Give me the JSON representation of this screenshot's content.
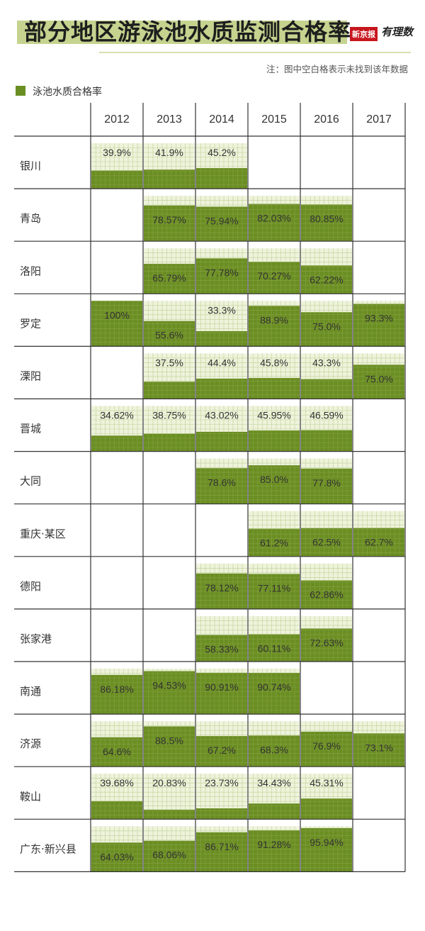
{
  "title": "部分地区游泳池水质监测合格率",
  "brand": {
    "tag": "新京报",
    "logo": "有理数"
  },
  "note": "注：图中空白格表示未找到该年数据",
  "legend": {
    "label": "泳池水质合格率"
  },
  "colors": {
    "fill": "#6b8e23",
    "empty": "#eef3db",
    "grid": "#9bb25e",
    "title_bar": "#c5d38f",
    "line": "#333333"
  },
  "chart_data": {
    "type": "table",
    "unit": "%",
    "years": [
      "2012",
      "2013",
      "2014",
      "2015",
      "2016",
      "2017"
    ],
    "rows": [
      {
        "region": "银川",
        "values": [
          39.9,
          41.9,
          45.2,
          null,
          null,
          null
        ],
        "labels": [
          "39.9%",
          "41.9%",
          "45.2%",
          "",
          "",
          ""
        ]
      },
      {
        "region": "青岛",
        "values": [
          null,
          78.57,
          75.94,
          82.03,
          80.85,
          null
        ],
        "labels": [
          "",
          "78.57%",
          "75.94%",
          "82.03%",
          "80.85%",
          ""
        ]
      },
      {
        "region": "洛阳",
        "values": [
          null,
          65.79,
          77.78,
          70.27,
          62.22,
          null
        ],
        "labels": [
          "",
          "65.79%",
          "77.78%",
          "70.27%",
          "62.22%",
          ""
        ]
      },
      {
        "region": "罗定",
        "values": [
          100,
          55.6,
          33.3,
          88.9,
          75.0,
          93.3
        ],
        "labels": [
          "100%",
          "55.6%",
          "33.3%",
          "88.9%",
          "75.0%",
          "93.3%"
        ]
      },
      {
        "region": "溧阳",
        "values": [
          null,
          37.5,
          44.4,
          45.8,
          43.3,
          75.0
        ],
        "labels": [
          "",
          "37.5%",
          "44.4%",
          "45.8%",
          "43.3%",
          "75.0%"
        ]
      },
      {
        "region": "晋城",
        "values": [
          34.62,
          38.75,
          43.02,
          45.95,
          46.59,
          null
        ],
        "labels": [
          "34.62%",
          "38.75%",
          "43.02%",
          "45.95%",
          "46.59%",
          ""
        ]
      },
      {
        "region": "大同",
        "values": [
          null,
          null,
          78.6,
          85.0,
          77.8,
          null
        ],
        "labels": [
          "",
          "",
          "78.6%",
          "85.0%",
          "77.8%",
          ""
        ]
      },
      {
        "region": "重庆·某区",
        "values": [
          null,
          null,
          null,
          61.2,
          62.5,
          62.7
        ],
        "labels": [
          "",
          "",
          "",
          "61.2%",
          "62.5%",
          "62.7%"
        ]
      },
      {
        "region": "德阳",
        "values": [
          null,
          null,
          78.12,
          77.11,
          62.86,
          null
        ],
        "labels": [
          "",
          "",
          "78.12%",
          "77.11%",
          "62.86%",
          ""
        ]
      },
      {
        "region": "张家港",
        "values": [
          null,
          null,
          58.33,
          60.11,
          72.63,
          null
        ],
        "labels": [
          "",
          "",
          "58.33%",
          "60.11%",
          "72.63%",
          ""
        ]
      },
      {
        "region": "南通",
        "values": [
          86.18,
          94.53,
          90.91,
          90.74,
          null,
          null
        ],
        "labels": [
          "86.18%",
          "94.53%",
          "90.91%",
          "90.74%",
          "",
          ""
        ]
      },
      {
        "region": "济源",
        "values": [
          64.6,
          88.5,
          67.2,
          68.3,
          76.9,
          73.1
        ],
        "labels": [
          "64.6%",
          "88.5%",
          "67.2%",
          "68.3%",
          "76.9%",
          "73.1%"
        ]
      },
      {
        "region": "鞍山",
        "values": [
          39.68,
          20.83,
          23.73,
          34.43,
          45.31,
          null
        ],
        "labels": [
          "39.68%",
          "20.83%",
          "23.73%",
          "34.43%",
          "45.31%",
          ""
        ]
      },
      {
        "region": "广东·新兴县",
        "values": [
          64.03,
          68.06,
          86.71,
          91.28,
          95.94,
          null
        ],
        "labels": [
          "64.03%",
          "68.06%",
          "86.71%",
          "91.28%",
          "95.94%",
          ""
        ]
      }
    ]
  }
}
